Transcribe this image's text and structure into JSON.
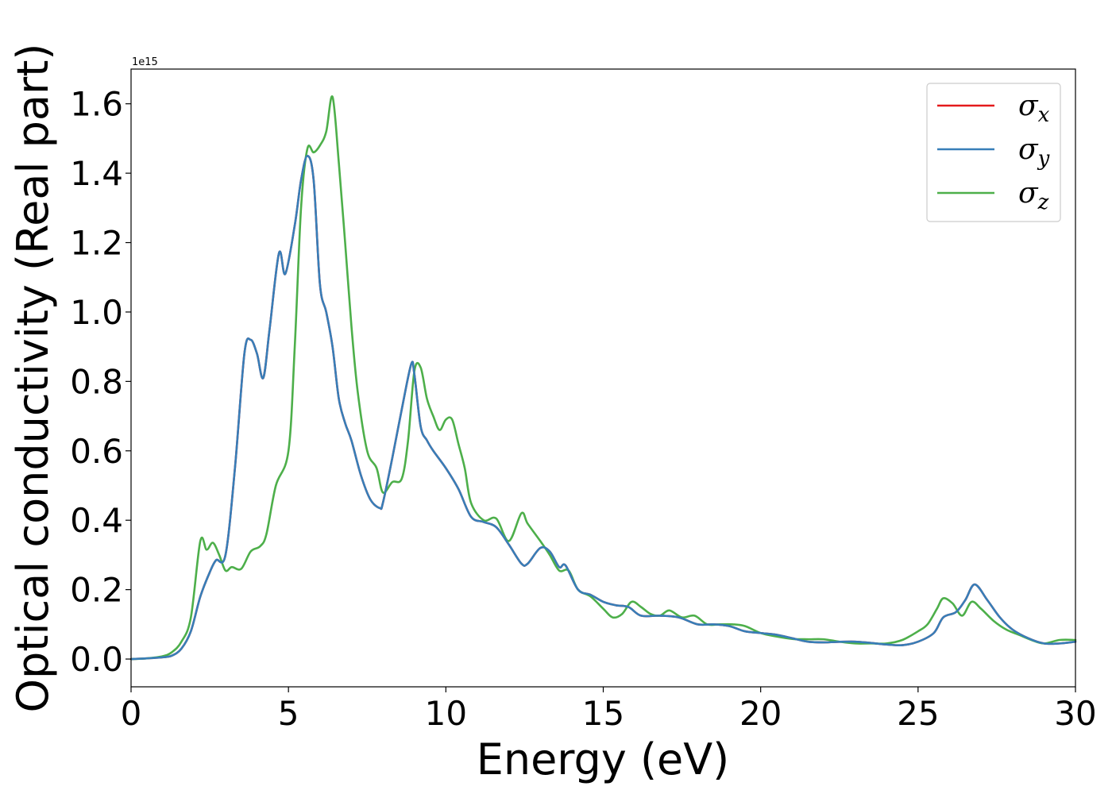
{
  "chart_data": {
    "type": "line",
    "title": "",
    "xlabel": "Energy (eV)",
    "ylabel": "Optical conductivity (Real part)",
    "y_offset_label": "1e15",
    "xlim": [
      0,
      30
    ],
    "ylim": [
      -0.08,
      1.7
    ],
    "xticks": [
      0,
      5,
      10,
      15,
      20,
      25,
      30
    ],
    "yticks": [
      0.0,
      0.2,
      0.4,
      0.6,
      0.8,
      1.0,
      1.2,
      1.4,
      1.6
    ],
    "grid": false,
    "legend_position": "top-right",
    "series": [
      {
        "name": "σx",
        "name_base": "σ",
        "name_sub": "x",
        "color": "#e41a1c",
        "x": [
          0,
          0.5,
          1.0,
          1.3,
          1.6,
          1.9,
          2.2,
          2.5,
          2.7,
          3.0,
          3.3,
          3.6,
          3.8,
          4.0,
          4.2,
          4.4,
          4.7,
          4.9,
          5.2,
          5.4,
          5.6,
          5.8,
          6.0,
          6.2,
          6.4,
          6.6,
          6.8,
          7.0,
          7.3,
          7.6,
          7.9,
          8.0,
          8.3,
          8.6,
          8.9,
          9.0,
          9.2,
          9.4,
          9.6,
          10.0,
          10.4,
          10.8,
          11.2,
          11.6,
          12.0,
          12.4,
          12.6,
          13.0,
          13.3,
          13.6,
          13.8,
          14.2,
          14.6,
          15.0,
          15.4,
          15.8,
          16.2,
          16.8,
          17.4,
          18.0,
          18.5,
          19.0,
          19.5,
          20.0,
          20.5,
          21.0,
          21.5,
          22.0,
          23.0,
          24.0,
          24.5,
          25.0,
          25.5,
          25.8,
          26.2,
          26.5,
          26.8,
          27.2,
          27.6,
          28.0,
          28.5,
          29.0,
          29.5,
          30.0
        ],
        "values": [
          0.0,
          0.002,
          0.005,
          0.01,
          0.03,
          0.08,
          0.18,
          0.25,
          0.285,
          0.3,
          0.55,
          0.88,
          0.92,
          0.88,
          0.81,
          0.95,
          1.17,
          1.11,
          1.25,
          1.38,
          1.45,
          1.38,
          1.08,
          1.0,
          0.9,
          0.75,
          0.68,
          0.63,
          0.53,
          0.46,
          0.435,
          0.45,
          0.58,
          0.72,
          0.85,
          0.82,
          0.67,
          0.63,
          0.6,
          0.55,
          0.49,
          0.41,
          0.395,
          0.38,
          0.33,
          0.275,
          0.275,
          0.32,
          0.31,
          0.265,
          0.27,
          0.2,
          0.185,
          0.165,
          0.155,
          0.15,
          0.125,
          0.125,
          0.12,
          0.1,
          0.1,
          0.095,
          0.08,
          0.075,
          0.07,
          0.06,
          0.05,
          0.048,
          0.05,
          0.042,
          0.04,
          0.05,
          0.075,
          0.12,
          0.135,
          0.17,
          0.215,
          0.17,
          0.12,
          0.085,
          0.06,
          0.045,
          0.045,
          0.05
        ]
      },
      {
        "name": "σy",
        "name_base": "σ",
        "name_sub": "y",
        "color": "#377eb8",
        "x": [
          0,
          0.5,
          1.0,
          1.3,
          1.6,
          1.9,
          2.2,
          2.5,
          2.7,
          3.0,
          3.3,
          3.6,
          3.8,
          4.0,
          4.2,
          4.4,
          4.7,
          4.9,
          5.2,
          5.4,
          5.6,
          5.8,
          6.0,
          6.2,
          6.4,
          6.6,
          6.8,
          7.0,
          7.3,
          7.6,
          7.9,
          8.0,
          8.3,
          8.6,
          8.9,
          9.0,
          9.2,
          9.4,
          9.6,
          10.0,
          10.4,
          10.8,
          11.2,
          11.6,
          12.0,
          12.4,
          12.6,
          13.0,
          13.3,
          13.6,
          13.8,
          14.2,
          14.6,
          15.0,
          15.4,
          15.8,
          16.2,
          16.8,
          17.4,
          18.0,
          18.5,
          19.0,
          19.5,
          20.0,
          20.5,
          21.0,
          21.5,
          22.0,
          23.0,
          24.0,
          24.5,
          25.0,
          25.5,
          25.8,
          26.2,
          26.5,
          26.8,
          27.2,
          27.6,
          28.0,
          28.5,
          29.0,
          29.5,
          30.0
        ],
        "values": [
          0.0,
          0.002,
          0.005,
          0.01,
          0.03,
          0.08,
          0.18,
          0.25,
          0.285,
          0.3,
          0.55,
          0.88,
          0.92,
          0.88,
          0.81,
          0.95,
          1.17,
          1.11,
          1.25,
          1.38,
          1.45,
          1.38,
          1.08,
          1.0,
          0.9,
          0.75,
          0.68,
          0.63,
          0.53,
          0.46,
          0.435,
          0.45,
          0.58,
          0.72,
          0.85,
          0.82,
          0.67,
          0.63,
          0.6,
          0.55,
          0.49,
          0.41,
          0.395,
          0.38,
          0.33,
          0.275,
          0.275,
          0.32,
          0.31,
          0.265,
          0.27,
          0.2,
          0.185,
          0.165,
          0.155,
          0.15,
          0.125,
          0.125,
          0.12,
          0.1,
          0.1,
          0.095,
          0.08,
          0.075,
          0.07,
          0.06,
          0.05,
          0.048,
          0.05,
          0.042,
          0.04,
          0.05,
          0.075,
          0.12,
          0.135,
          0.17,
          0.215,
          0.17,
          0.12,
          0.085,
          0.06,
          0.045,
          0.045,
          0.05
        ]
      },
      {
        "name": "σz",
        "name_base": "σ",
        "name_sub": "z",
        "color": "#4daf4a",
        "x": [
          0,
          0.5,
          1.0,
          1.3,
          1.6,
          1.9,
          2.2,
          2.4,
          2.6,
          2.8,
          3.0,
          3.2,
          3.5,
          3.8,
          4.1,
          4.3,
          4.6,
          5.0,
          5.2,
          5.4,
          5.6,
          5.8,
          6.0,
          6.2,
          6.4,
          6.6,
          6.8,
          7.0,
          7.2,
          7.5,
          7.8,
          8.0,
          8.3,
          8.6,
          8.8,
          9.0,
          9.2,
          9.4,
          9.6,
          9.8,
          10.0,
          10.2,
          10.4,
          10.6,
          10.8,
          11.2,
          11.6,
          12.0,
          12.4,
          12.6,
          13.0,
          13.3,
          13.6,
          13.9,
          14.2,
          14.6,
          15.0,
          15.3,
          15.6,
          15.9,
          16.2,
          16.5,
          16.8,
          17.1,
          17.5,
          17.9,
          18.3,
          18.7,
          19.1,
          19.5,
          20.0,
          20.5,
          21.0,
          21.5,
          22.0,
          22.5,
          23.0,
          23.5,
          24.0,
          24.5,
          25.0,
          25.3,
          25.6,
          25.8,
          26.1,
          26.4,
          26.7,
          27.0,
          27.4,
          27.8,
          28.2,
          28.6,
          29.0,
          29.5,
          30.0
        ],
        "values": [
          0.0,
          0.002,
          0.008,
          0.02,
          0.05,
          0.12,
          0.34,
          0.315,
          0.335,
          0.3,
          0.255,
          0.265,
          0.26,
          0.31,
          0.325,
          0.36,
          0.5,
          0.6,
          0.9,
          1.3,
          1.47,
          1.46,
          1.48,
          1.52,
          1.62,
          1.43,
          1.2,
          0.96,
          0.77,
          0.6,
          0.55,
          0.48,
          0.51,
          0.52,
          0.63,
          0.83,
          0.84,
          0.75,
          0.7,
          0.66,
          0.69,
          0.69,
          0.62,
          0.55,
          0.45,
          0.4,
          0.405,
          0.34,
          0.42,
          0.39,
          0.34,
          0.3,
          0.255,
          0.255,
          0.2,
          0.18,
          0.145,
          0.12,
          0.13,
          0.165,
          0.15,
          0.13,
          0.125,
          0.14,
          0.12,
          0.125,
          0.1,
          0.1,
          0.1,
          0.095,
          0.075,
          0.065,
          0.058,
          0.057,
          0.057,
          0.05,
          0.045,
          0.045,
          0.045,
          0.055,
          0.08,
          0.1,
          0.145,
          0.175,
          0.16,
          0.125,
          0.165,
          0.145,
          0.11,
          0.085,
          0.07,
          0.055,
          0.045,
          0.055,
          0.055
        ]
      }
    ]
  }
}
